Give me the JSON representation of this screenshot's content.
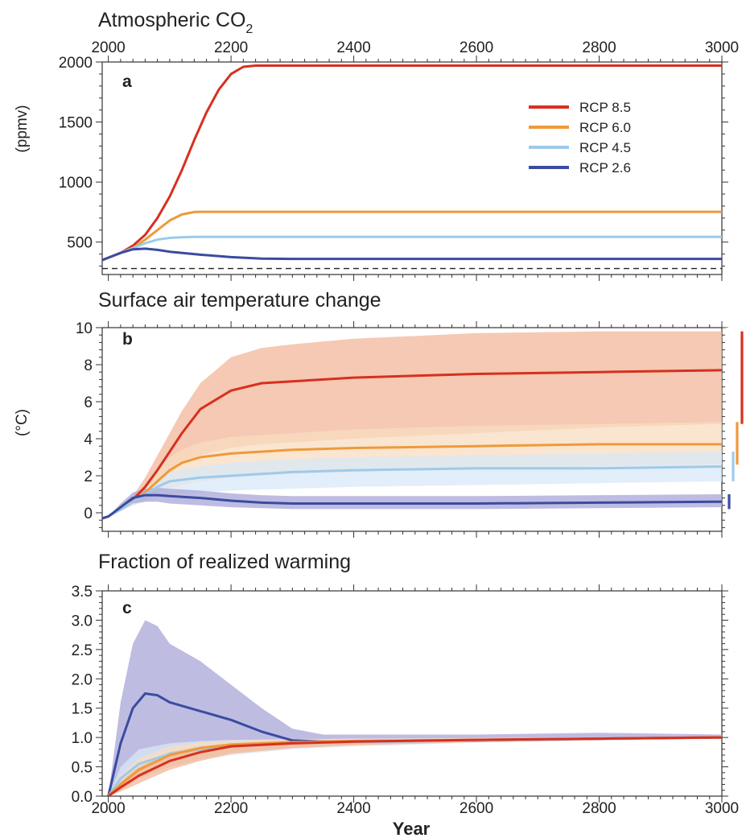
{
  "colors": {
    "rcp85": "#d7301f",
    "rcp60": "#ee9a3a",
    "rcp45": "#9ecae9",
    "rcp26": "#3b4ba0",
    "band85": "#f2b79a",
    "band60": "#f8dcc0",
    "band45": "#d8e8f7",
    "band26": "#aaa5d8"
  },
  "chart_data": [
    {
      "type": "line",
      "panel": "a",
      "title": "Atmospheric CO",
      "title_sub": "2",
      "ylabel": "(ppmv)",
      "xlabel": "",
      "xlim": [
        1990,
        3000
      ],
      "ylim": [
        230,
        2000
      ],
      "x_ticks": [
        "2000",
        "2200",
        "2400",
        "2600",
        "2800",
        "3000"
      ],
      "y_ticks": [
        "500",
        "1000",
        "1500",
        "2000"
      ],
      "legend_position": "top-right",
      "reference_line": {
        "y": 280,
        "style": "dashed"
      },
      "series": [
        {
          "name": "RCP 8.5",
          "key": "rcp85",
          "x": [
            1990,
            2000,
            2020,
            2040,
            2060,
            2080,
            2100,
            2120,
            2140,
            2160,
            2180,
            2200,
            2220,
            2240,
            2250,
            3000
          ],
          "y": [
            350,
            370,
            410,
            470,
            560,
            700,
            880,
            1100,
            1350,
            1580,
            1770,
            1900,
            1960,
            1970,
            1970,
            1970
          ]
        },
        {
          "name": "RCP 6.0",
          "key": "rcp60",
          "x": [
            1990,
            2000,
            2020,
            2040,
            2060,
            2080,
            2100,
            2120,
            2140,
            2150,
            3000
          ],
          "y": [
            350,
            370,
            410,
            450,
            520,
            600,
            680,
            730,
            750,
            752,
            752
          ]
        },
        {
          "name": "RCP 4.5",
          "key": "rcp45",
          "x": [
            1990,
            2000,
            2020,
            2040,
            2060,
            2080,
            2100,
            2120,
            2140,
            3000
          ],
          "y": [
            350,
            370,
            410,
            450,
            490,
            520,
            535,
            540,
            543,
            543
          ]
        },
        {
          "name": "RCP 2.6",
          "key": "rcp26",
          "x": [
            1990,
            2000,
            2020,
            2040,
            2060,
            2080,
            2100,
            2150,
            2200,
            2250,
            2300,
            3000
          ],
          "y": [
            350,
            370,
            410,
            440,
            445,
            435,
            420,
            395,
            375,
            362,
            360,
            360
          ]
        }
      ]
    },
    {
      "type": "area",
      "panel": "b",
      "title": "Surface air temperature change",
      "ylabel": "(°C)",
      "xlabel": "",
      "xlim": [
        1990,
        3000
      ],
      "ylim": [
        -1,
        10
      ],
      "x_ticks": [
        "2000",
        "2200",
        "2400",
        "2600",
        "2800",
        "3000"
      ],
      "y_ticks": [
        "0",
        "2",
        "4",
        "6",
        "8",
        "10"
      ],
      "series": [
        {
          "name": "RCP 8.5",
          "key": "rcp85",
          "x": [
            1990,
            2000,
            2020,
            2040,
            2060,
            2080,
            2100,
            2120,
            2150,
            2200,
            2250,
            2300,
            2400,
            2600,
            2800,
            3000
          ],
          "y": [
            -0.3,
            -0.2,
            0.2,
            0.7,
            1.4,
            2.3,
            3.3,
            4.3,
            5.6,
            6.6,
            7.0,
            7.1,
            7.3,
            7.5,
            7.6,
            7.7
          ],
          "lower": [
            -0.3,
            -0.2,
            0.1,
            0.5,
            0.9,
            1.5,
            2.1,
            2.6,
            3.1,
            3.5,
            3.7,
            3.8,
            4.0,
            4.3,
            4.6,
            4.8
          ],
          "upper": [
            -0.3,
            -0.2,
            0.3,
            0.9,
            1.9,
            3.1,
            4.3,
            5.5,
            7.0,
            8.4,
            8.9,
            9.1,
            9.4,
            9.7,
            9.8,
            9.8
          ]
        },
        {
          "name": "RCP 6.0",
          "key": "rcp60",
          "x": [
            1990,
            2000,
            2020,
            2040,
            2060,
            2080,
            2100,
            2120,
            2150,
            2200,
            2300,
            2400,
            2600,
            2800,
            3000
          ],
          "y": [
            -0.3,
            -0.2,
            0.2,
            0.6,
            1.1,
            1.7,
            2.3,
            2.7,
            3.0,
            3.2,
            3.4,
            3.5,
            3.6,
            3.7,
            3.7
          ],
          "lower": [
            -0.3,
            -0.2,
            0.1,
            0.4,
            0.7,
            1.0,
            1.3,
            1.5,
            1.7,
            1.9,
            2.1,
            2.2,
            2.4,
            2.5,
            2.6
          ],
          "upper": [
            -0.3,
            -0.2,
            0.3,
            0.8,
            1.5,
            2.3,
            3.0,
            3.4,
            3.8,
            4.1,
            4.3,
            4.5,
            4.7,
            4.8,
            4.9
          ]
        },
        {
          "name": "RCP 4.5",
          "key": "rcp45",
          "x": [
            1990,
            2000,
            2020,
            2040,
            2060,
            2080,
            2100,
            2150,
            2200,
            2300,
            2400,
            2600,
            2800,
            3000
          ],
          "y": [
            -0.3,
            -0.2,
            0.2,
            0.6,
            1.0,
            1.4,
            1.7,
            1.9,
            2.0,
            2.2,
            2.3,
            2.4,
            2.4,
            2.5
          ],
          "lower": [
            -0.3,
            -0.2,
            0.1,
            0.4,
            0.6,
            0.9,
            1.0,
            1.1,
            1.2,
            1.3,
            1.4,
            1.5,
            1.6,
            1.7
          ],
          "upper": [
            -0.3,
            -0.2,
            0.3,
            0.8,
            1.3,
            1.8,
            2.2,
            2.5,
            2.7,
            2.9,
            3.0,
            3.1,
            3.2,
            3.3
          ]
        },
        {
          "name": "RCP 2.6",
          "key": "rcp26",
          "x": [
            1990,
            2000,
            2020,
            2040,
            2060,
            2080,
            2100,
            2150,
            2200,
            2250,
            2300,
            2400,
            2600,
            2800,
            3000
          ],
          "y": [
            -0.3,
            -0.2,
            0.3,
            0.8,
            0.95,
            0.95,
            0.9,
            0.8,
            0.65,
            0.55,
            0.5,
            0.5,
            0.5,
            0.55,
            0.6
          ],
          "lower": [
            -0.3,
            -0.2,
            0.1,
            0.5,
            0.6,
            0.6,
            0.5,
            0.4,
            0.3,
            0.25,
            0.2,
            0.2,
            0.2,
            0.25,
            0.3
          ],
          "upper": [
            -0.3,
            -0.2,
            0.5,
            1.1,
            1.3,
            1.35,
            1.3,
            1.2,
            1.05,
            0.95,
            0.9,
            0.9,
            0.9,
            0.95,
            1.0
          ]
        }
      ],
      "range_bars": [
        {
          "key": "rcp85",
          "low": 4.8,
          "high": 9.8
        },
        {
          "key": "rcp60",
          "low": 2.6,
          "high": 4.9
        },
        {
          "key": "rcp45",
          "low": 1.7,
          "high": 3.3
        },
        {
          "key": "rcp26",
          "low": 0.2,
          "high": 1.0
        }
      ]
    },
    {
      "type": "area",
      "panel": "c",
      "title": "Fraction of realized warming",
      "xlabel": "Year",
      "ylabel": "",
      "xlim": [
        1990,
        3000
      ],
      "ylim": [
        0,
        3.5
      ],
      "x_ticks": [
        "2000",
        "2200",
        "2400",
        "2600",
        "2800",
        "3000"
      ],
      "y_ticks": [
        "0.0",
        "0.5",
        "1.0",
        "1.5",
        "2.0",
        "2.5",
        "3.0",
        "3.5"
      ],
      "series": [
        {
          "name": "RCP 2.6",
          "key": "rcp26",
          "x": [
            2000,
            2020,
            2040,
            2060,
            2080,
            2100,
            2150,
            2200,
            2250,
            2300,
            2350,
            2400,
            2500,
            2600,
            2800,
            3000
          ],
          "y": [
            0.0,
            0.9,
            1.5,
            1.75,
            1.72,
            1.6,
            1.45,
            1.3,
            1.1,
            0.95,
            0.93,
            0.93,
            0.94,
            0.95,
            0.98,
            1.0
          ],
          "lower": [
            0.0,
            0.2,
            0.4,
            0.55,
            0.65,
            0.7,
            0.8,
            0.86,
            0.88,
            0.9,
            0.9,
            0.9,
            0.91,
            0.92,
            0.95,
            0.98
          ],
          "upper": [
            0.0,
            1.6,
            2.6,
            3.0,
            2.9,
            2.6,
            2.3,
            1.9,
            1.5,
            1.15,
            1.05,
            1.05,
            1.05,
            1.05,
            1.08,
            1.05
          ]
        },
        {
          "name": "RCP 4.5",
          "key": "rcp45",
          "x": [
            2000,
            2020,
            2050,
            2100,
            2150,
            2200,
            2300,
            2400,
            2600,
            2800,
            3000
          ],
          "y": [
            0.0,
            0.3,
            0.55,
            0.72,
            0.8,
            0.85,
            0.9,
            0.92,
            0.95,
            0.98,
            1.0
          ],
          "lower": [
            0.0,
            0.15,
            0.35,
            0.5,
            0.62,
            0.7,
            0.8,
            0.85,
            0.91,
            0.95,
            0.98
          ],
          "upper": [
            0.0,
            0.5,
            0.8,
            0.9,
            0.94,
            0.96,
            0.97,
            0.98,
            0.99,
            1.0,
            1.0
          ]
        },
        {
          "name": "RCP 6.0",
          "key": "rcp60",
          "x": [
            2000,
            2020,
            2050,
            2100,
            2150,
            2200,
            2300,
            2400,
            2600,
            2800,
            3000
          ],
          "y": [
            0.0,
            0.2,
            0.45,
            0.7,
            0.82,
            0.88,
            0.92,
            0.94,
            0.96,
            0.98,
            1.0
          ],
          "lower": [
            0.0,
            0.1,
            0.3,
            0.5,
            0.65,
            0.74,
            0.82,
            0.86,
            0.92,
            0.96,
            0.98
          ],
          "upper": [
            0.0,
            0.35,
            0.65,
            0.85,
            0.92,
            0.95,
            0.97,
            0.98,
            0.99,
            1.0,
            1.0
          ]
        },
        {
          "name": "RCP 8.5",
          "key": "rcp85",
          "x": [
            2000,
            2020,
            2050,
            2100,
            2150,
            2200,
            2300,
            2400,
            2600,
            2800,
            3000
          ],
          "y": [
            0.0,
            0.15,
            0.35,
            0.6,
            0.75,
            0.85,
            0.9,
            0.93,
            0.96,
            0.98,
            1.0
          ],
          "lower": [
            0.0,
            0.08,
            0.22,
            0.45,
            0.6,
            0.72,
            0.82,
            0.87,
            0.92,
            0.96,
            0.98
          ],
          "upper": [
            0.0,
            0.25,
            0.5,
            0.75,
            0.85,
            0.9,
            0.95,
            0.96,
            0.98,
            0.99,
            1.0
          ]
        }
      ]
    }
  ]
}
